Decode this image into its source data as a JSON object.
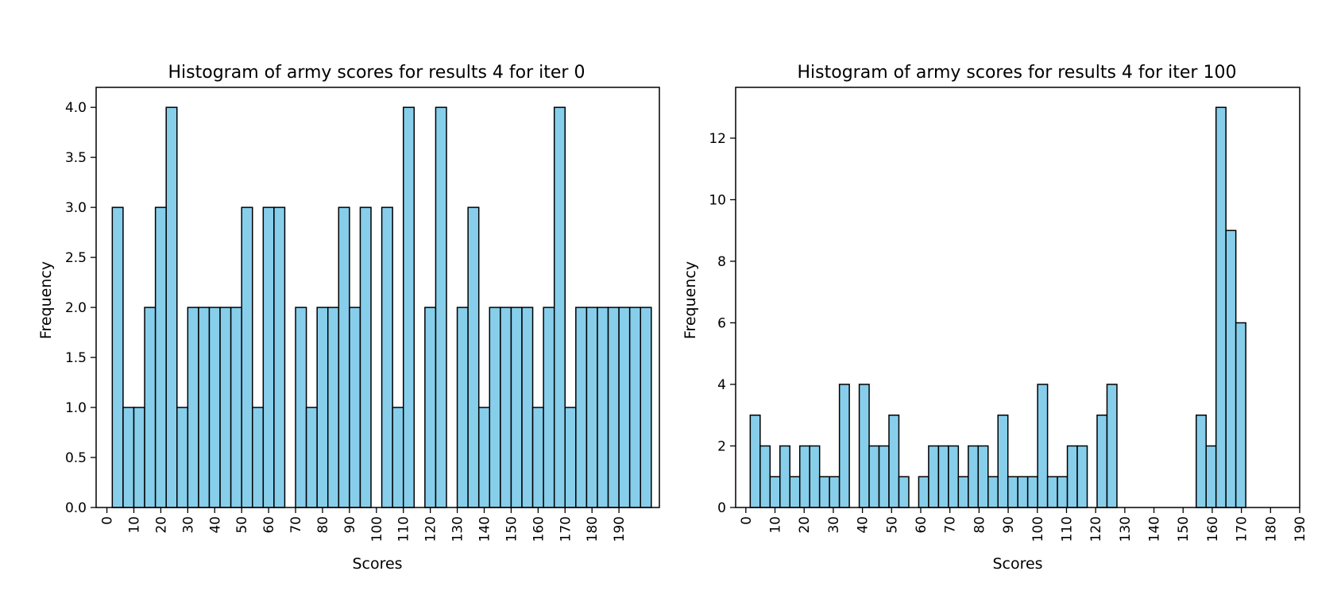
{
  "colors": {
    "bar_fill": "#87CEEB",
    "bar_edge": "#000000",
    "axis": "#000000",
    "background": "#ffffff"
  },
  "chart_data": [
    {
      "type": "bar",
      "title": "Histogram of army scores for results 4 for iter 0",
      "xlabel": "Scores",
      "ylabel": "Frequency",
      "xlim": [
        -4,
        205
      ],
      "ylim": [
        0,
        4.2
      ],
      "bin_width": 4,
      "bin_start": 2,
      "xticks": [
        0,
        10,
        20,
        30,
        40,
        50,
        60,
        70,
        80,
        90,
        100,
        110,
        120,
        130,
        140,
        150,
        160,
        170,
        180,
        190
      ],
      "yticks": [
        0.0,
        0.5,
        1.0,
        1.5,
        2.0,
        2.5,
        3.0,
        3.5,
        4.0
      ],
      "ytick_decimals": 1,
      "bins": [
        {
          "x0": 2,
          "x1": 6,
          "count": 3
        },
        {
          "x0": 6,
          "x1": 10,
          "count": 1
        },
        {
          "x0": 10,
          "x1": 14,
          "count": 1
        },
        {
          "x0": 14,
          "x1": 18,
          "count": 2
        },
        {
          "x0": 18,
          "x1": 22,
          "count": 3
        },
        {
          "x0": 22,
          "x1": 26,
          "count": 4
        },
        {
          "x0": 26,
          "x1": 30,
          "count": 1
        },
        {
          "x0": 30,
          "x1": 34,
          "count": 2
        },
        {
          "x0": 34,
          "x1": 38,
          "count": 2
        },
        {
          "x0": 38,
          "x1": 42,
          "count": 2
        },
        {
          "x0": 42,
          "x1": 46,
          "count": 2
        },
        {
          "x0": 46,
          "x1": 50,
          "count": 2
        },
        {
          "x0": 50,
          "x1": 54,
          "count": 3
        },
        {
          "x0": 54,
          "x1": 58,
          "count": 1
        },
        {
          "x0": 58,
          "x1": 62,
          "count": 3
        },
        {
          "x0": 62,
          "x1": 66,
          "count": 3
        },
        {
          "x0": 66,
          "x1": 70,
          "count": 0
        },
        {
          "x0": 70,
          "x1": 74,
          "count": 2
        },
        {
          "x0": 74,
          "x1": 78,
          "count": 1
        },
        {
          "x0": 78,
          "x1": 82,
          "count": 2
        },
        {
          "x0": 82,
          "x1": 86,
          "count": 2
        },
        {
          "x0": 86,
          "x1": 90,
          "count": 3
        },
        {
          "x0": 90,
          "x1": 94,
          "count": 2
        },
        {
          "x0": 94,
          "x1": 98,
          "count": 3
        },
        {
          "x0": 98,
          "x1": 102,
          "count": 0
        },
        {
          "x0": 102,
          "x1": 106,
          "count": 3
        },
        {
          "x0": 106,
          "x1": 110,
          "count": 1
        },
        {
          "x0": 110,
          "x1": 114,
          "count": 4
        },
        {
          "x0": 114,
          "x1": 118,
          "count": 0
        },
        {
          "x0": 118,
          "x1": 122,
          "count": 2
        },
        {
          "x0": 122,
          "x1": 126,
          "count": 4
        },
        {
          "x0": 126,
          "x1": 130,
          "count": 0
        },
        {
          "x0": 130,
          "x1": 134,
          "count": 2
        },
        {
          "x0": 134,
          "x1": 138,
          "count": 3
        },
        {
          "x0": 138,
          "x1": 142,
          "count": 1
        },
        {
          "x0": 142,
          "x1": 146,
          "count": 2
        },
        {
          "x0": 146,
          "x1": 150,
          "count": 2
        },
        {
          "x0": 150,
          "x1": 154,
          "count": 2
        },
        {
          "x0": 154,
          "x1": 158,
          "count": 2
        },
        {
          "x0": 158,
          "x1": 162,
          "count": 1
        },
        {
          "x0": 162,
          "x1": 166,
          "count": 2
        },
        {
          "x0": 166,
          "x1": 170,
          "count": 4
        },
        {
          "x0": 170,
          "x1": 174,
          "count": 1
        },
        {
          "x0": 174,
          "x1": 178,
          "count": 2
        },
        {
          "x0": 178,
          "x1": 182,
          "count": 2
        },
        {
          "x0": 182,
          "x1": 186,
          "count": 2
        },
        {
          "x0": 186,
          "x1": 190,
          "count": 2
        },
        {
          "x0": 190,
          "x1": 194,
          "count": 2
        },
        {
          "x0": 194,
          "x1": 198,
          "count": 2
        },
        {
          "x0": 198,
          "x1": 202,
          "count": 2
        }
      ]
    },
    {
      "type": "bar",
      "title": "Histogram of army scores for results 4 for iter 100",
      "xlabel": "Scores",
      "ylabel": "Frequency",
      "xlim": [
        -3.5,
        190
      ],
      "ylim": [
        0,
        13.65
      ],
      "bin_width": 3.4,
      "bin_start": 1.5,
      "xticks": [
        0,
        10,
        20,
        30,
        40,
        50,
        60,
        70,
        80,
        90,
        100,
        110,
        120,
        130,
        140,
        150,
        160,
        170,
        180,
        190
      ],
      "yticks": [
        0,
        2,
        4,
        6,
        8,
        10,
        12
      ],
      "ytick_decimals": 0,
      "bins": [
        {
          "x0": 1.5,
          "x1": 4.9,
          "count": 3
        },
        {
          "x0": 4.9,
          "x1": 8.3,
          "count": 2
        },
        {
          "x0": 8.3,
          "x1": 11.7,
          "count": 1
        },
        {
          "x0": 11.7,
          "x1": 15.1,
          "count": 2
        },
        {
          "x0": 15.1,
          "x1": 18.5,
          "count": 1
        },
        {
          "x0": 18.5,
          "x1": 21.9,
          "count": 2
        },
        {
          "x0": 21.9,
          "x1": 25.3,
          "count": 2
        },
        {
          "x0": 25.3,
          "x1": 28.7,
          "count": 1
        },
        {
          "x0": 28.7,
          "x1": 32.1,
          "count": 1
        },
        {
          "x0": 32.1,
          "x1": 35.5,
          "count": 4
        },
        {
          "x0": 35.5,
          "x1": 38.9,
          "count": 0
        },
        {
          "x0": 38.9,
          "x1": 42.3,
          "count": 4
        },
        {
          "x0": 42.3,
          "x1": 45.7,
          "count": 2
        },
        {
          "x0": 45.7,
          "x1": 49.1,
          "count": 2
        },
        {
          "x0": 49.1,
          "x1": 52.5,
          "count": 3
        },
        {
          "x0": 52.5,
          "x1": 55.9,
          "count": 1
        },
        {
          "x0": 55.9,
          "x1": 59.3,
          "count": 0
        },
        {
          "x0": 59.3,
          "x1": 62.7,
          "count": 1
        },
        {
          "x0": 62.7,
          "x1": 66.1,
          "count": 2
        },
        {
          "x0": 66.1,
          "x1": 69.5,
          "count": 2
        },
        {
          "x0": 69.5,
          "x1": 72.9,
          "count": 2
        },
        {
          "x0": 72.9,
          "x1": 76.3,
          "count": 1
        },
        {
          "x0": 76.3,
          "x1": 79.7,
          "count": 2
        },
        {
          "x0": 79.7,
          "x1": 83.1,
          "count": 2
        },
        {
          "x0": 83.1,
          "x1": 86.5,
          "count": 1
        },
        {
          "x0": 86.5,
          "x1": 89.9,
          "count": 3
        },
        {
          "x0": 89.9,
          "x1": 93.3,
          "count": 1
        },
        {
          "x0": 93.3,
          "x1": 96.7,
          "count": 1
        },
        {
          "x0": 96.7,
          "x1": 100.1,
          "count": 1
        },
        {
          "x0": 100.1,
          "x1": 103.5,
          "count": 4
        },
        {
          "x0": 103.5,
          "x1": 106.9,
          "count": 1
        },
        {
          "x0": 106.9,
          "x1": 110.3,
          "count": 1
        },
        {
          "x0": 110.3,
          "x1": 113.7,
          "count": 2
        },
        {
          "x0": 113.7,
          "x1": 117.1,
          "count": 2
        },
        {
          "x0": 117.1,
          "x1": 120.5,
          "count": 0
        },
        {
          "x0": 120.5,
          "x1": 123.9,
          "count": 3
        },
        {
          "x0": 123.9,
          "x1": 127.3,
          "count": 4
        },
        {
          "x0": 154.5,
          "x1": 157.9,
          "count": 3
        },
        {
          "x0": 157.9,
          "x1": 161.3,
          "count": 2
        },
        {
          "x0": 161.3,
          "x1": 164.7,
          "count": 13
        },
        {
          "x0": 164.7,
          "x1": 168.1,
          "count": 9
        },
        {
          "x0": 168.1,
          "x1": 171.5,
          "count": 6
        }
      ]
    }
  ]
}
